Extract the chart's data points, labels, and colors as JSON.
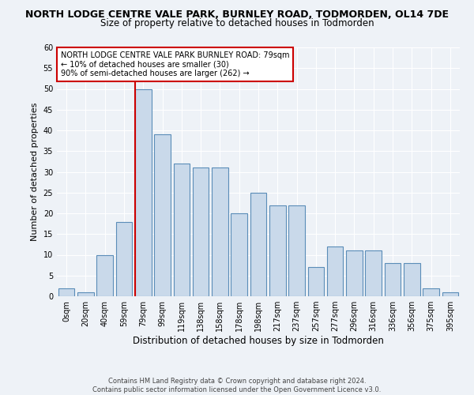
{
  "title": "NORTH LODGE CENTRE VALE PARK, BURNLEY ROAD, TODMORDEN, OL14 7DE",
  "subtitle": "Size of property relative to detached houses in Todmorden",
  "xlabel": "Distribution of detached houses by size in Todmorden",
  "ylabel": "Number of detached properties",
  "bar_labels": [
    "0sqm",
    "20sqm",
    "40sqm",
    "59sqm",
    "79sqm",
    "99sqm",
    "119sqm",
    "138sqm",
    "158sqm",
    "178sqm",
    "198sqm",
    "217sqm",
    "237sqm",
    "257sqm",
    "277sqm",
    "296sqm",
    "316sqm",
    "336sqm",
    "356sqm",
    "375sqm",
    "395sqm"
  ],
  "bar_values": [
    2,
    1,
    10,
    18,
    50,
    39,
    32,
    31,
    31,
    20,
    25,
    22,
    22,
    7,
    12,
    11,
    11,
    8,
    8,
    2,
    1
  ],
  "bar_color": "#c9d9ea",
  "bar_edge_color": "#5b8db8",
  "vline_index": 4,
  "vline_color": "#cc0000",
  "ylim": [
    0,
    60
  ],
  "yticks": [
    0,
    5,
    10,
    15,
    20,
    25,
    30,
    35,
    40,
    45,
    50,
    55,
    60
  ],
  "annotation_title": "NORTH LODGE CENTRE VALE PARK BURNLEY ROAD: 79sqm",
  "annotation_line1": "← 10% of detached houses are smaller (30)",
  "annotation_line2": "90% of semi-detached houses are larger (262) →",
  "annotation_box_color": "#ffffff",
  "annotation_box_edge_color": "#cc0000",
  "footer_line1": "Contains HM Land Registry data © Crown copyright and database right 2024.",
  "footer_line2": "Contains public sector information licensed under the Open Government Licence v3.0.",
  "bg_color": "#eef2f7",
  "plot_bg_color": "#eef2f7",
  "grid_color": "#ffffff",
  "title_fontsize": 9,
  "subtitle_fontsize": 8.5,
  "ylabel_fontsize": 8,
  "xlabel_fontsize": 8.5,
  "tick_fontsize": 7,
  "annotation_fontsize": 7,
  "footer_fontsize": 6
}
